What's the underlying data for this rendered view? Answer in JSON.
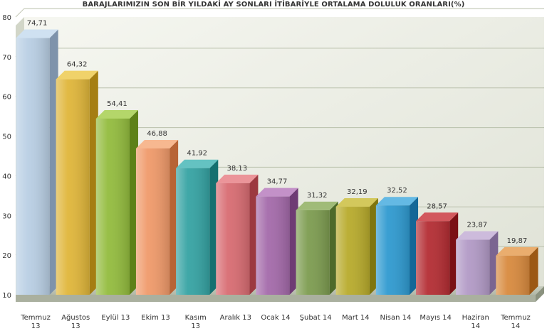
{
  "chart_data": {
    "type": "bar",
    "title": "BARAJLARIMIZIN SON BİR YILDAKİ AY SONLARI İTİBARİYLE ORTALAMA DOLULUK ORANLARI(%)",
    "categories": [
      [
        "Temmuz",
        "13"
      ],
      [
        "Ağustos",
        "13"
      ],
      [
        "Eylül 13"
      ],
      [
        "Ekim 13"
      ],
      [
        "Kasım",
        "13"
      ],
      [
        "Aralık 13"
      ],
      [
        "Ocak 14"
      ],
      [
        "Şubat 14"
      ],
      [
        "Mart 14"
      ],
      [
        "Nisan 14"
      ],
      [
        "Mayıs 14"
      ],
      [
        "Haziran",
        "14"
      ],
      [
        "Temmuz",
        "14"
      ]
    ],
    "values": [
      74.71,
      64.32,
      54.41,
      46.88,
      41.92,
      38.13,
      34.77,
      31.32,
      32.19,
      32.52,
      28.57,
      23.87,
      19.87
    ],
    "data_labels": [
      "74,71",
      "64,32",
      "54,41",
      "46,88",
      "41,92",
      "38,13",
      "34,77",
      "31,32",
      "32,19",
      "32,52",
      "28,57",
      "23,87",
      "19,87"
    ],
    "ylim": [
      10,
      80
    ],
    "yticks": [
      10,
      20,
      30,
      40,
      50,
      60,
      70,
      80
    ],
    "grid": true,
    "legend": "none",
    "colors": [
      {
        "front": "#b9cfe4",
        "side": "#7e93ab",
        "top": "#cfe1f1"
      },
      {
        "front": "#e0b63a",
        "side": "#a57e12",
        "top": "#f0d26a"
      },
      {
        "front": "#93bc3e",
        "side": "#5e8118",
        "top": "#b4d66a"
      },
      {
        "front": "#f09a6a",
        "side": "#b76436",
        "top": "#f7b890"
      },
      {
        "front": "#35a3a3",
        "side": "#147070",
        "top": "#64c2c2"
      },
      {
        "front": "#d86c72",
        "side": "#9c3940",
        "top": "#eb9499"
      },
      {
        "front": "#a46aaa",
        "side": "#6e3b74",
        "top": "#c391c8"
      },
      {
        "front": "#7d9c50",
        "side": "#4d6a2a",
        "top": "#a0bb78"
      },
      {
        "front": "#b8ab2c",
        "side": "#7f750e",
        "top": "#d3c85c"
      },
      {
        "front": "#2f9ad0",
        "side": "#146797",
        "top": "#64b9e4"
      },
      {
        "front": "#b42d33",
        "side": "#7a1015",
        "top": "#d2585d"
      },
      {
        "front": "#b29ac6",
        "side": "#7b6591",
        "top": "#cdbbdc"
      },
      {
        "front": "#d88a3e",
        "side": "#9c5814",
        "top": "#eaad6e"
      }
    ]
  }
}
